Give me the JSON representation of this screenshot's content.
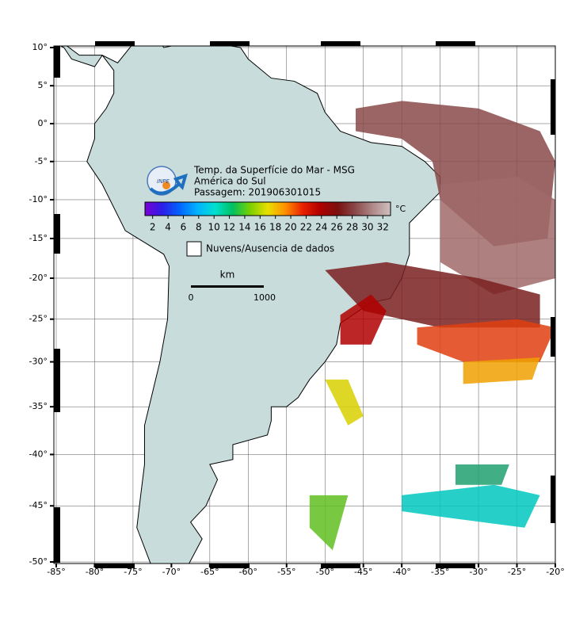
{
  "map": {
    "title": "Temp. da Superfície do Mar - MSG",
    "region": "América do Sul",
    "pass": "Passagem: 201906301015",
    "xlim": [
      -85,
      -20
    ],
    "ylim": [
      -50,
      10
    ],
    "xticks": [
      {
        "value": -85,
        "label": "-85°"
      },
      {
        "value": -80,
        "label": "-80°"
      },
      {
        "value": -75,
        "label": "-75°"
      },
      {
        "value": -70,
        "label": "-70°"
      },
      {
        "value": -65,
        "label": "-65°"
      },
      {
        "value": -60,
        "label": "-60°"
      },
      {
        "value": -55,
        "label": "-55°"
      },
      {
        "value": -50,
        "label": "-50°"
      },
      {
        "value": -45,
        "label": "-45°"
      },
      {
        "value": -40,
        "label": "-40°"
      },
      {
        "value": -35,
        "label": "-35°"
      },
      {
        "value": -30,
        "label": "-30°"
      },
      {
        "value": -25,
        "label": "-25°"
      },
      {
        "value": -20,
        "label": "-20°"
      }
    ],
    "yticks": [
      {
        "value": 10,
        "label": "10°"
      },
      {
        "value": 5,
        "label": "5°"
      },
      {
        "value": 0,
        "label": "0°"
      },
      {
        "value": -5,
        "label": "-5°"
      },
      {
        "value": -10,
        "label": "-10°"
      },
      {
        "value": -15,
        "label": "-15°"
      },
      {
        "value": -20,
        "label": "-20°"
      },
      {
        "value": -25,
        "label": "-25°"
      },
      {
        "value": -30,
        "label": "-30°"
      },
      {
        "value": -35,
        "label": "-35°"
      },
      {
        "value": -40,
        "label": "-40°"
      },
      {
        "value": -45,
        "label": "-45°"
      },
      {
        "value": -50,
        "label": "-50°"
      }
    ],
    "grid": true,
    "colorbar": {
      "unit": "°C",
      "lim": [
        1,
        33
      ],
      "ticks": [
        2,
        4,
        6,
        8,
        10,
        12,
        14,
        16,
        18,
        20,
        22,
        24,
        26,
        28,
        30,
        32
      ],
      "colors": [
        "#7a00d4",
        "#2a1ee8",
        "#0066ff",
        "#00b4ff",
        "#00e0d0",
        "#00c060",
        "#7ad000",
        "#e8e000",
        "#ff9000",
        "#e82000",
        "#b00000",
        "#7a1010",
        "#8a4a4a",
        "#b08a8a",
        "#d0c0c0"
      ]
    },
    "legend": "Nuvens/Ausencia de dados",
    "scale": {
      "unit": "km",
      "start": "0",
      "end": "1000"
    }
  }
}
